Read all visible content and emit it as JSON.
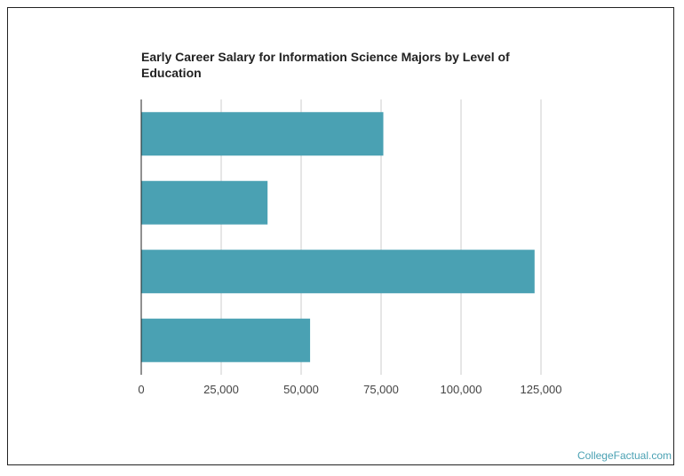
{
  "colors": {
    "bar": "#4aa1b3",
    "grid": "#cccccc",
    "axis": "#222222"
  },
  "credit": "CollegeFactual.com",
  "chart_data": {
    "type": "bar",
    "orientation": "horizontal",
    "title": "Early Career Salary for Information Science Majors by Level of Education",
    "xlabel": "",
    "ylabel": "",
    "categories": [
      "",
      "",
      "",
      ""
    ],
    "values": [
      75700,
      39500,
      123000,
      52800
    ],
    "xlim": [
      0,
      125000
    ],
    "xticks": [
      0,
      25000,
      50000,
      75000,
      100000,
      125000
    ],
    "xtick_labels": [
      "0",
      "25,000",
      "50,000",
      "75,000",
      "100,000",
      "125,000"
    ],
    "grid": true,
    "legend": "none"
  }
}
